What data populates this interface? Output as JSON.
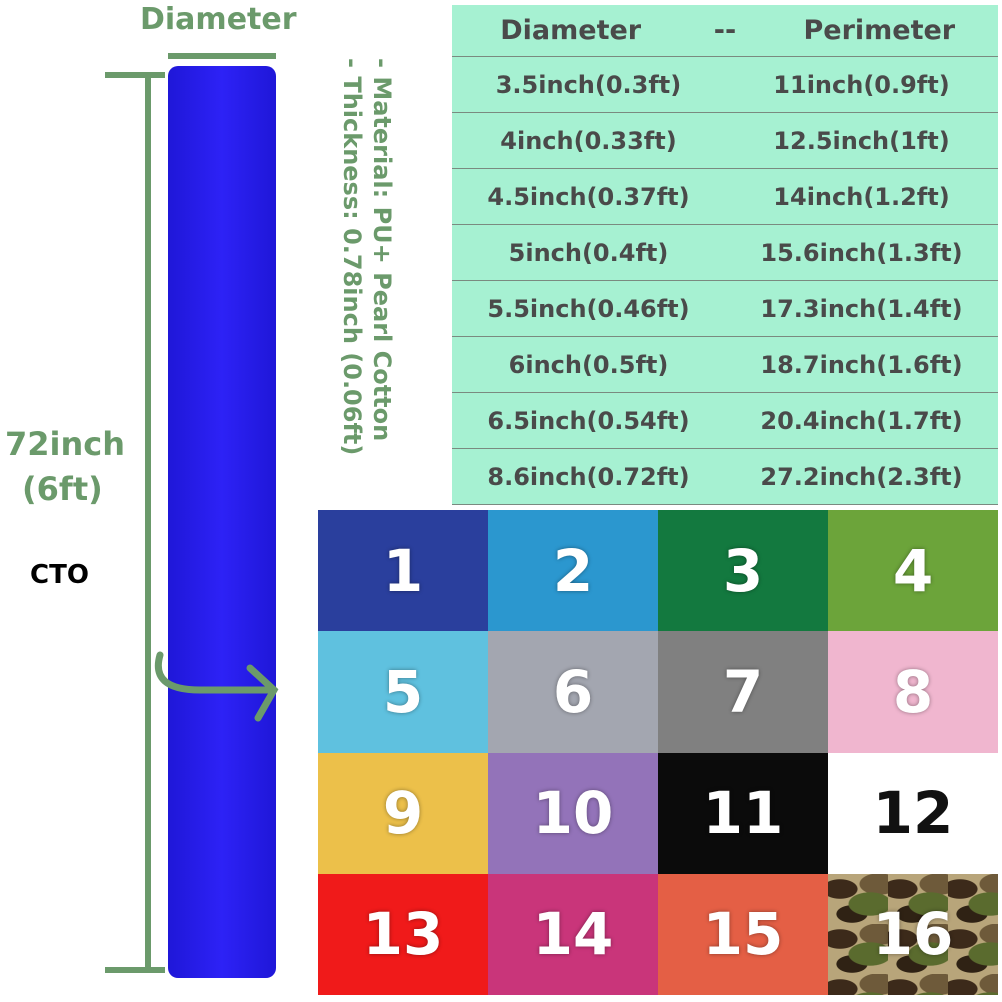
{
  "diagram": {
    "diameter_label": "Diameter",
    "length_label": "72inch",
    "length_label_ft": "(6ft)",
    "brand": "CTO",
    "material": "- Material:  PU+ Pearl Cotton",
    "thickness": "- Thickness: 0.78inch (0.06ft)"
  },
  "table": {
    "header": [
      "Diameter",
      "--",
      "Perimeter"
    ],
    "rows": [
      [
        "3.5inch(0.3ft)",
        "11inch(0.9ft)"
      ],
      [
        "4inch(0.33ft)",
        "12.5inch(1ft)"
      ],
      [
        "4.5inch(0.37ft)",
        "14inch(1.2ft)"
      ],
      [
        "5inch(0.4ft)",
        "15.6inch(1.3ft)"
      ],
      [
        "5.5inch(0.46ft)",
        "17.3inch(1.4ft)"
      ],
      [
        "6inch(0.5ft)",
        "18.7inch(1.6ft)"
      ],
      [
        "6.5inch(0.54ft)",
        "20.4inch(1.7ft)"
      ],
      [
        "8.6inch(0.72ft)",
        "27.2inch(2.3ft)"
      ]
    ]
  },
  "swatches": [
    {
      "label": "1",
      "color": "#2a3f9d"
    },
    {
      "label": "2",
      "color": "#2b97cf"
    },
    {
      "label": "3",
      "color": "#13793f"
    },
    {
      "label": "4",
      "color": "#6ca43a"
    },
    {
      "label": "5",
      "color": "#5fc1df"
    },
    {
      "label": "6",
      "color": "#a3a6b0"
    },
    {
      "label": "7",
      "color": "#808080"
    },
    {
      "label": "8",
      "color": "#f0b6cf"
    },
    {
      "label": "9",
      "color": "#ecc04a"
    },
    {
      "label": "10",
      "color": "#9373b9"
    },
    {
      "label": "11",
      "color": "#0b0b0b"
    },
    {
      "label": "12",
      "color": "#ffffff"
    },
    {
      "label": "13",
      "color": "#f01a1a"
    },
    {
      "label": "14",
      "color": "#c9357a"
    },
    {
      "label": "15",
      "color": "#e45f45"
    },
    {
      "label": "16",
      "color": "camo"
    }
  ]
}
